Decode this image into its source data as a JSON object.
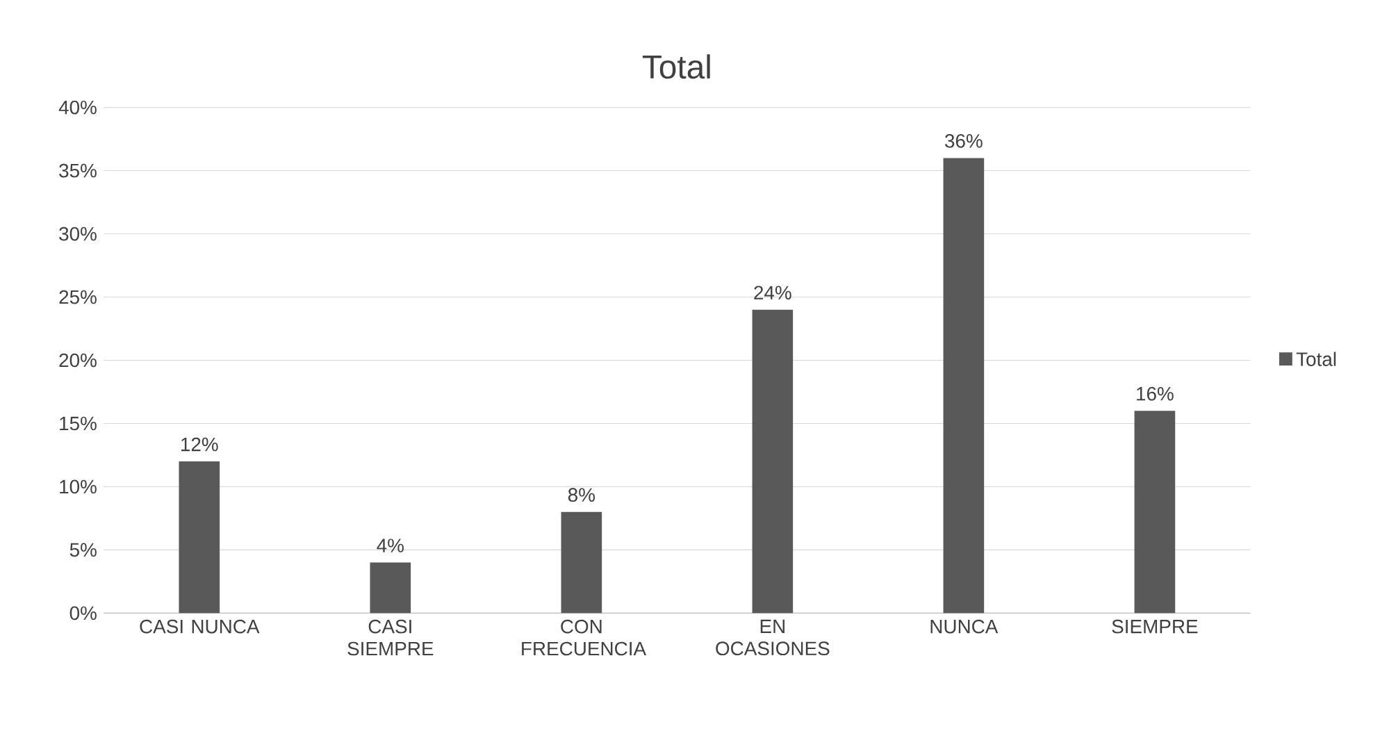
{
  "chart_data": {
    "type": "bar",
    "title": "Total",
    "categories": [
      "CASI NUNCA",
      "CASI SIEMPRE",
      "CON FRECUENCIA",
      "EN OCASIONES",
      "NUNCA",
      "SIEMPRE"
    ],
    "series": [
      {
        "name": "Total",
        "color": "#595959",
        "values": [
          12,
          4,
          8,
          24,
          36,
          16
        ],
        "value_labels": [
          "12%",
          "4%",
          "8%",
          "24%",
          "36%",
          "16%"
        ]
      }
    ],
    "ylim": [
      0,
      40
    ],
    "yticks": [
      {
        "value": 0,
        "label": "0%"
      },
      {
        "value": 5,
        "label": "5%"
      },
      {
        "value": 10,
        "label": "10%"
      },
      {
        "value": 15,
        "label": "15%"
      },
      {
        "value": 20,
        "label": "20%"
      },
      {
        "value": 25,
        "label": "25%"
      },
      {
        "value": 30,
        "label": "30%"
      },
      {
        "value": 35,
        "label": "35%"
      },
      {
        "value": 40,
        "label": "40%"
      }
    ],
    "grid": "y",
    "legend": "right"
  }
}
